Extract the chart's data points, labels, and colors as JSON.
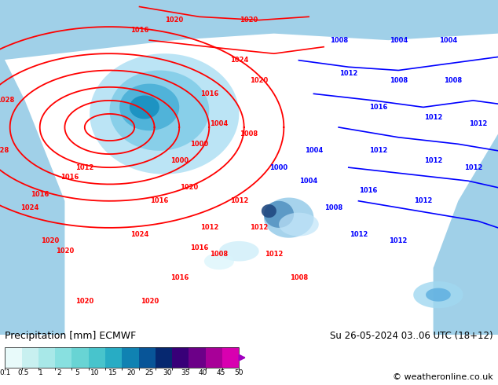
{
  "title_left": "Precipitation [mm] ECMWF",
  "title_right": "Su 26-05-2024 03..06 UTC (18+12)",
  "copyright": "© weatheronline.co.uk",
  "colorbar_values": [
    "0.1",
    "0.5",
    "1",
    "2",
    "5",
    "10",
    "15",
    "20",
    "25",
    "30",
    "35",
    "40",
    "45",
    "50"
  ],
  "colorbar_colors": [
    "#e8fafa",
    "#c8f0f0",
    "#a8e8e8",
    "#88e0e0",
    "#68d4d4",
    "#48c4cc",
    "#28acc4",
    "#1082b2",
    "#085598",
    "#062870",
    "#380078",
    "#6c0088",
    "#a80098",
    "#d800b0"
  ],
  "map_bg_color": "#90c878",
  "ocean_color": "#a0d0e8",
  "fig_bg_color": "#ffffff",
  "label_fontsize": 9,
  "copyright_fontsize": 8
}
